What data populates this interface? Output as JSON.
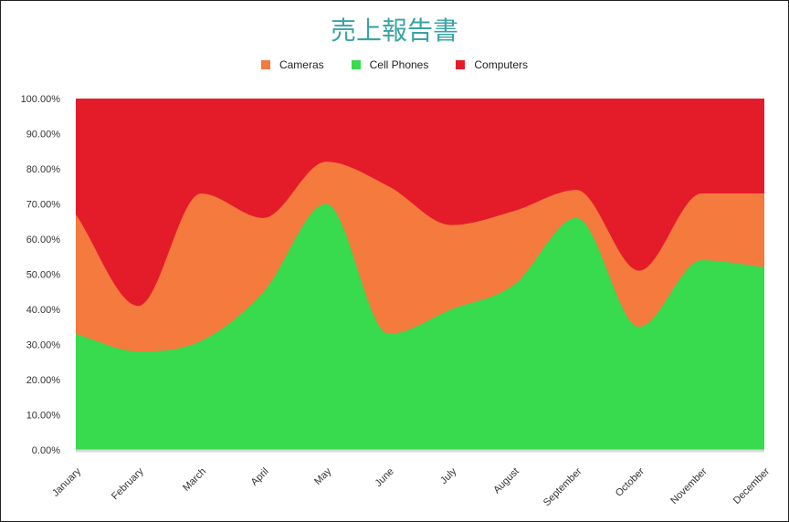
{
  "chart_data": {
    "type": "area",
    "stacked": "percent",
    "title": "売上報告書",
    "categories": [
      "January",
      "February",
      "March",
      "April",
      "May",
      "June",
      "July",
      "August",
      "September",
      "October",
      "November",
      "December"
    ],
    "series": [
      {
        "name": "Cameras",
        "color": "#f47a3d",
        "values": [
          34,
          13,
          42,
          21,
          12,
          42,
          24,
          21,
          8,
          16,
          19,
          21
        ]
      },
      {
        "name": "Cell Phones",
        "color": "#38da4e",
        "values": [
          33,
          28,
          31,
          45,
          70,
          33,
          40,
          47,
          66,
          35,
          54,
          52
        ]
      },
      {
        "name": "Computers",
        "color": "#e41c2a",
        "values": [
          33,
          59,
          27,
          34,
          18,
          25,
          36,
          32,
          26,
          49,
          27,
          27
        ]
      }
    ],
    "stack_order": [
      "Cell Phones",
      "Cameras",
      "Computers"
    ],
    "y_ticks": [
      "0.00%",
      "10.00%",
      "20.00%",
      "30.00%",
      "40.00%",
      "50.00%",
      "60.00%",
      "70.00%",
      "80.00%",
      "90.00%",
      "100.00%"
    ],
    "ylim": [
      0,
      100
    ],
    "legend_position": "top",
    "grid": false
  }
}
